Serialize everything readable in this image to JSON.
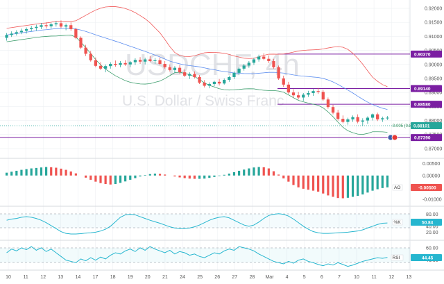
{
  "symbol": "USDCHF, 4h",
  "description": "U.S. Dollar / Swiss Franc",
  "colors": {
    "up": "#26a69a",
    "down": "#ef5350",
    "bb_upper": "#f05a5a",
    "bb_lower": "#3c9d6c",
    "bb_mid": "#5b8def",
    "level_line": "#7b1fa2",
    "price_tag": "#7b1fa2",
    "current_tag": "#26a69a",
    "rsi_line": "#26b6cf",
    "stoch_line": "#26b6cf"
  },
  "price_axis_labels": [
    "0.92000",
    "0.91500",
    "0.91000",
    "0.90500",
    "0.90000",
    "0.89500",
    "0.89000",
    "0.88500",
    "0.88000",
    "0.87500",
    "0.87000"
  ],
  "level_tags": [
    "0.90370",
    "0.89140",
    "0.88580",
    "0.87390"
  ],
  "current_price_tag": "0.88101",
  "pct_change": "-0.005 (0.87887)",
  "ao_axis_labels": [
    "0.00500",
    "0.00000",
    "-0.00500",
    "-0.01000"
  ],
  "ao_tag": "AO",
  "ao_value": "-0.00500",
  "ind1_axis_labels": [
    "80.00",
    "40.00",
    "20.00"
  ],
  "ind1_tag": "%K",
  "ind1_value": "50.84",
  "rsi_axis_labels": [
    "60.00",
    "40.00"
  ],
  "rsi_tag": "RSI",
  "rsi_value": "44.45",
  "time_axis_labels": [
    "10",
    "11",
    "12",
    "13",
    "14",
    "17",
    "18",
    "19",
    "20",
    "21",
    "24",
    "25",
    "26",
    "27",
    "28",
    "Mar",
    "4",
    "5",
    "6",
    "7",
    "10",
    "11",
    "12",
    "13"
  ],
  "chart_data": {
    "type": "candlestick",
    "title": "USDCHF, 4h",
    "subtitle": "U.S. Dollar / Swiss Franc",
    "ylim": [
      0.8675,
      0.9215
    ],
    "levels": [
      0.9037,
      0.8914,
      0.8858,
      0.8739
    ],
    "current_price": 0.88101,
    "candles": [
      [
        0.9095,
        0.9112,
        0.9085,
        0.9105
      ],
      [
        0.9105,
        0.9118,
        0.9098,
        0.911
      ],
      [
        0.911,
        0.9122,
        0.9103,
        0.9115
      ],
      [
        0.9115,
        0.9128,
        0.9108,
        0.912
      ],
      [
        0.912,
        0.9132,
        0.911,
        0.9126
      ],
      [
        0.9126,
        0.9138,
        0.9118,
        0.913
      ],
      [
        0.913,
        0.9142,
        0.912,
        0.9134
      ],
      [
        0.9134,
        0.9148,
        0.9126,
        0.914
      ],
      [
        0.914,
        0.915,
        0.9128,
        0.9136
      ],
      [
        0.9136,
        0.9149,
        0.9128,
        0.9143
      ],
      [
        0.9143,
        0.9155,
        0.9135,
        0.9147
      ],
      [
        0.9147,
        0.9157,
        0.913,
        0.9135
      ],
      [
        0.9135,
        0.9146,
        0.9122,
        0.914
      ],
      [
        0.914,
        0.915,
        0.912,
        0.9126
      ],
      [
        0.9126,
        0.9131,
        0.909,
        0.9095
      ],
      [
        0.9095,
        0.91,
        0.9055,
        0.906
      ],
      [
        0.906,
        0.907,
        0.903,
        0.9038
      ],
      [
        0.9038,
        0.9048,
        0.901,
        0.9015
      ],
      [
        0.9015,
        0.9025,
        0.899,
        0.8995
      ],
      [
        0.8995,
        0.9008,
        0.898,
        0.8985
      ],
      [
        0.8985,
        0.9,
        0.8972,
        0.8994
      ],
      [
        0.8994,
        0.9008,
        0.8985,
        0.9002
      ],
      [
        0.9002,
        0.9014,
        0.8992,
        0.8998
      ],
      [
        0.8998,
        0.9012,
        0.899,
        0.9005
      ],
      [
        0.9005,
        0.9015,
        0.8995,
        0.9
      ],
      [
        0.9,
        0.9012,
        0.899,
        0.9008
      ],
      [
        0.9008,
        0.9022,
        0.8998,
        0.9016
      ],
      [
        0.9016,
        0.9026,
        0.9002,
        0.901
      ],
      [
        0.901,
        0.9024,
        0.9,
        0.9018
      ],
      [
        0.9018,
        0.903,
        0.9008,
        0.9012
      ],
      [
        0.9012,
        0.9023,
        0.9002,
        0.9015
      ],
      [
        0.9015,
        0.9025,
        0.8998,
        0.9002
      ],
      [
        0.9002,
        0.9012,
        0.8985,
        0.899
      ],
      [
        0.899,
        0.9,
        0.8975,
        0.898
      ],
      [
        0.898,
        0.8994,
        0.897,
        0.8988
      ],
      [
        0.8988,
        0.8998,
        0.8966,
        0.8972
      ],
      [
        0.8972,
        0.8982,
        0.8955,
        0.896
      ],
      [
        0.896,
        0.8972,
        0.8948,
        0.8966
      ],
      [
        0.8966,
        0.8975,
        0.895,
        0.8955
      ],
      [
        0.8955,
        0.8962,
        0.893,
        0.8935
      ],
      [
        0.8935,
        0.8944,
        0.8918,
        0.8924
      ],
      [
        0.8924,
        0.8936,
        0.8915,
        0.893
      ],
      [
        0.893,
        0.8942,
        0.8922,
        0.8938
      ],
      [
        0.8938,
        0.8948,
        0.8925,
        0.8932
      ],
      [
        0.8932,
        0.895,
        0.8928,
        0.8945
      ],
      [
        0.8945,
        0.896,
        0.8938,
        0.8955
      ],
      [
        0.8955,
        0.8975,
        0.8948,
        0.897
      ],
      [
        0.897,
        0.899,
        0.8962,
        0.8985
      ],
      [
        0.8985,
        0.9002,
        0.8978,
        0.8996
      ],
      [
        0.8996,
        0.9012,
        0.8988,
        0.9006
      ],
      [
        0.9006,
        0.9024,
        0.8998,
        0.9018
      ],
      [
        0.9018,
        0.9035,
        0.901,
        0.9028
      ],
      [
        0.9028,
        0.904,
        0.9015,
        0.902
      ],
      [
        0.902,
        0.9032,
        0.9005,
        0.9012
      ],
      [
        0.9012,
        0.902,
        0.8985,
        0.899
      ],
      [
        0.899,
        0.8996,
        0.8945,
        0.895
      ],
      [
        0.895,
        0.896,
        0.892,
        0.8928
      ],
      [
        0.8928,
        0.8938,
        0.8895,
        0.89
      ],
      [
        0.89,
        0.8912,
        0.8882,
        0.889
      ],
      [
        0.889,
        0.8902,
        0.8875,
        0.8882
      ],
      [
        0.8882,
        0.8898,
        0.887,
        0.8892
      ],
      [
        0.8892,
        0.8906,
        0.8884,
        0.8898
      ],
      [
        0.8898,
        0.8912,
        0.8888,
        0.8905
      ],
      [
        0.8905,
        0.8916,
        0.8895,
        0.8902
      ],
      [
        0.8902,
        0.891,
        0.887,
        0.8875
      ],
      [
        0.8875,
        0.8882,
        0.8842,
        0.8848
      ],
      [
        0.8848,
        0.8856,
        0.8822,
        0.8828
      ],
      [
        0.8828,
        0.8838,
        0.88,
        0.8806
      ],
      [
        0.8806,
        0.8818,
        0.879,
        0.8795
      ],
      [
        0.8795,
        0.881,
        0.8785,
        0.8804
      ],
      [
        0.8804,
        0.8818,
        0.8795,
        0.8812
      ],
      [
        0.8812,
        0.8822,
        0.879,
        0.8796
      ],
      [
        0.8796,
        0.8808,
        0.878,
        0.88
      ],
      [
        0.88,
        0.8815,
        0.8788,
        0.881
      ],
      [
        0.881,
        0.8825,
        0.88,
        0.8822
      ],
      [
        0.8822,
        0.8828,
        0.8798,
        0.8804
      ],
      [
        0.8804,
        0.8814,
        0.8795,
        0.8808
      ],
      [
        0.8808,
        0.8816,
        0.8802,
        0.881
      ]
    ],
    "ao": [
      0.0012,
      0.0016,
      0.002,
      0.0024,
      0.0027,
      0.003,
      0.0032,
      0.0034,
      0.0036,
      0.0035,
      0.0033,
      0.0029,
      0.0024,
      0.0017,
      0.0009,
      0.0,
      -0.0009,
      -0.0018,
      -0.0026,
      -0.0032,
      -0.0036,
      -0.0038,
      -0.0036,
      -0.0031,
      -0.0025,
      -0.0018,
      -0.0011,
      -0.0004,
      0.0002,
      0.0006,
      0.0008,
      0.0007,
      0.0004,
      0.0,
      -0.0004,
      -0.0008,
      -0.0011,
      -0.0013,
      -0.0014,
      -0.0014,
      -0.0013,
      -0.001,
      -0.0006,
      -0.0002,
      0.0003,
      0.0008,
      0.0014,
      0.002,
      0.0025,
      0.003,
      0.0034,
      0.0036,
      0.0035,
      0.003,
      0.0018,
      0.0004,
      -0.0012,
      -0.0026,
      -0.004,
      -0.005,
      -0.0056,
      -0.006,
      -0.0064,
      -0.0068,
      -0.0076,
      -0.0084,
      -0.009,
      -0.0095,
      -0.0096,
      -0.0094,
      -0.009,
      -0.0086,
      -0.008,
      -0.0072,
      -0.0064,
      -0.0058,
      -0.0053,
      -0.005
    ],
    "ind1": [
      60,
      64,
      66,
      70,
      72,
      70,
      66,
      60,
      52,
      42,
      32,
      22,
      16,
      14,
      14,
      15,
      17,
      18,
      20,
      24,
      30,
      40,
      55,
      70,
      78,
      80,
      78,
      72,
      66,
      60,
      55,
      50,
      44,
      38,
      34,
      32,
      32,
      34,
      38,
      44,
      52,
      60,
      66,
      70,
      72,
      68,
      60,
      52,
      44,
      40,
      44,
      54,
      66,
      76,
      80,
      82,
      80,
      74,
      64,
      52,
      40,
      30,
      22,
      18,
      16,
      16,
      17,
      18,
      19,
      20,
      22,
      24,
      28,
      34,
      40,
      46,
      50,
      51
    ],
    "rsi": [
      52,
      58,
      55,
      60,
      57,
      62,
      56,
      60,
      54,
      58,
      52,
      46,
      40,
      38,
      36,
      42,
      39,
      44,
      40,
      45,
      42,
      48,
      52,
      50,
      55,
      58,
      54,
      60,
      56,
      62,
      58,
      55,
      52,
      56,
      50,
      54,
      52,
      48,
      50,
      46,
      44,
      48,
      52,
      50,
      55,
      58,
      56,
      62,
      60,
      58,
      55,
      50,
      46,
      42,
      38,
      36,
      34,
      38,
      35,
      40,
      42,
      38,
      36,
      33,
      31,
      34,
      32,
      36,
      33,
      30,
      32,
      35,
      38,
      40,
      42,
      44,
      43,
      44.45
    ]
  }
}
